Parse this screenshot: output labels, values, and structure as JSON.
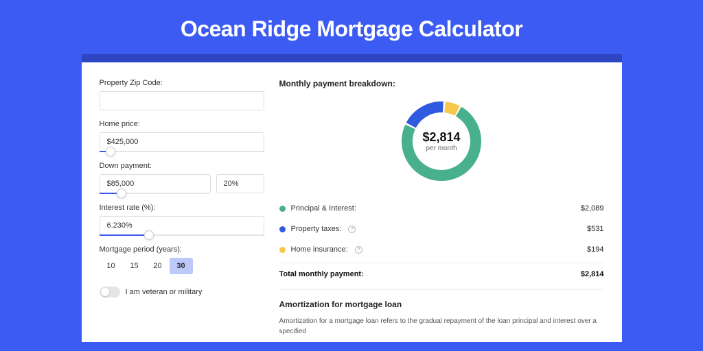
{
  "page_title": "Ocean Ridge Mortgage Calculator",
  "colors": {
    "page_bg": "#3b5bf2",
    "card_border_top": "#2e46c1",
    "slider_fill": "#3b5bf2",
    "period_active_bg": "#bcc9f9"
  },
  "form": {
    "zip": {
      "label": "Property Zip Code:",
      "value": ""
    },
    "price": {
      "label": "Home price:",
      "value": "$425,000",
      "slider": {
        "fill_pct": 7,
        "thumb_pct": 7
      }
    },
    "down": {
      "label": "Down payment:",
      "value": "$85,000",
      "pct": "20%",
      "slider": {
        "fill_pct": 20,
        "thumb_pct": 20
      }
    },
    "rate": {
      "label": "Interest rate (%):",
      "value": "6.230%",
      "slider": {
        "fill_pct": 30,
        "thumb_pct": 30
      }
    },
    "period": {
      "label": "Mortgage period (years):",
      "options": [
        "10",
        "15",
        "20",
        "30"
      ],
      "active_index": 3
    },
    "veteran": {
      "label": "I am veteran or military",
      "on": false
    }
  },
  "breakdown": {
    "title": "Monthly payment breakdown:",
    "donut": {
      "amount": "$2,814",
      "sub": "per month",
      "total": 2814,
      "gap_deg": 3,
      "series": [
        {
          "label": "Principal & Interest",
          "value": 2089,
          "color": "#48b08c"
        },
        {
          "label": "Property taxes",
          "value": 531,
          "color": "#2e5be0"
        },
        {
          "label": "Home insurance",
          "value": 194,
          "color": "#f5c84c"
        }
      ],
      "stroke_width": 16,
      "radius": 50
    },
    "rows": [
      {
        "label": "Principal & Interest:",
        "value": "$2,089",
        "color": "#48b08c",
        "info": false
      },
      {
        "label": "Property taxes:",
        "value": "$531",
        "color": "#2e5be0",
        "info": true
      },
      {
        "label": "Home insurance:",
        "value": "$194",
        "color": "#f5c84c",
        "info": true
      }
    ],
    "total": {
      "label": "Total monthly payment:",
      "value": "$2,814"
    }
  },
  "amortization": {
    "title": "Amortization for mortgage loan",
    "text": "Amortization for a mortgage loan refers to the gradual repayment of the loan principal and interest over a specified"
  }
}
